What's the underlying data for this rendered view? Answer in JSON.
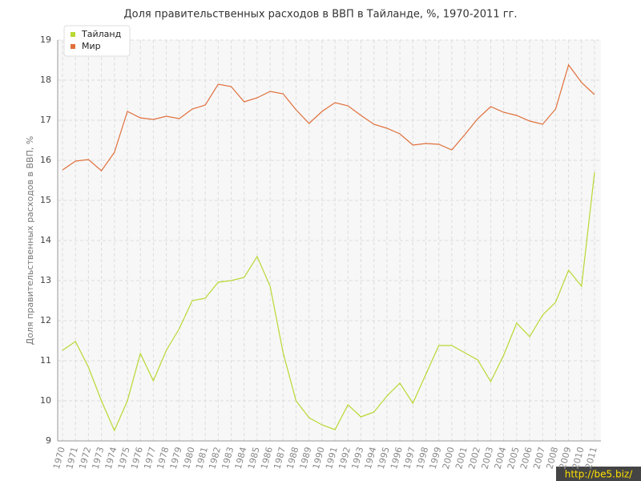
{
  "chart_data": {
    "type": "line",
    "title": "Доля правительственных расходов в ВВП в Тайланде, %, 1970-2011 гг.",
    "y_label": "Доля правительственных расходов в ВВП, %",
    "categories": [
      "1970",
      "1971",
      "1972",
      "1973",
      "1974",
      "1975",
      "1976",
      "1977",
      "1978",
      "1979",
      "1980",
      "1981",
      "1982",
      "1983",
      "1984",
      "1985",
      "1986",
      "1987",
      "1988",
      "1989",
      "1990",
      "1991",
      "1992",
      "1993",
      "1994",
      "1995",
      "1996",
      "1997",
      "1998",
      "1999",
      "2000",
      "2001",
      "2002",
      "2003",
      "2004",
      "2005",
      "2006",
      "2007",
      "2008",
      "2009",
      "2010",
      "2011"
    ],
    "series": [
      {
        "name": "Тайланд",
        "color": "#b8d832",
        "values": [
          11.26,
          11.48,
          10.84,
          10.0,
          9.26,
          10.0,
          11.18,
          10.5,
          11.26,
          11.8,
          12.5,
          12.56,
          12.96,
          13.0,
          13.08,
          13.6,
          12.86,
          11.2,
          10.0,
          9.58,
          9.4,
          9.28,
          9.9,
          9.6,
          9.72,
          10.12,
          10.44,
          9.94,
          10.66,
          11.38,
          11.38,
          11.2,
          11.02,
          10.48,
          11.14,
          11.94,
          11.6,
          12.14,
          12.46,
          13.26,
          12.86,
          15.7
        ]
      },
      {
        "name": "Мир",
        "color": "#e0703c",
        "values": [
          15.76,
          15.98,
          16.02,
          15.74,
          16.2,
          17.22,
          17.06,
          17.02,
          17.1,
          17.04,
          17.28,
          17.38,
          17.9,
          17.84,
          17.46,
          17.56,
          17.72,
          17.66,
          17.26,
          16.92,
          17.22,
          17.44,
          17.36,
          17.12,
          16.9,
          16.8,
          16.66,
          16.38,
          16.42,
          16.4,
          16.26,
          16.64,
          17.04,
          17.34,
          17.2,
          17.12,
          16.98,
          16.9,
          17.28,
          18.38,
          17.94,
          17.64
        ]
      }
    ],
    "ylim": [
      9,
      19
    ],
    "yticks": [
      9,
      10,
      11,
      12,
      13,
      14,
      15,
      16,
      17,
      18,
      19
    ],
    "grid": true,
    "legend": "upper-left",
    "watermark": "http://be5.biz/"
  }
}
